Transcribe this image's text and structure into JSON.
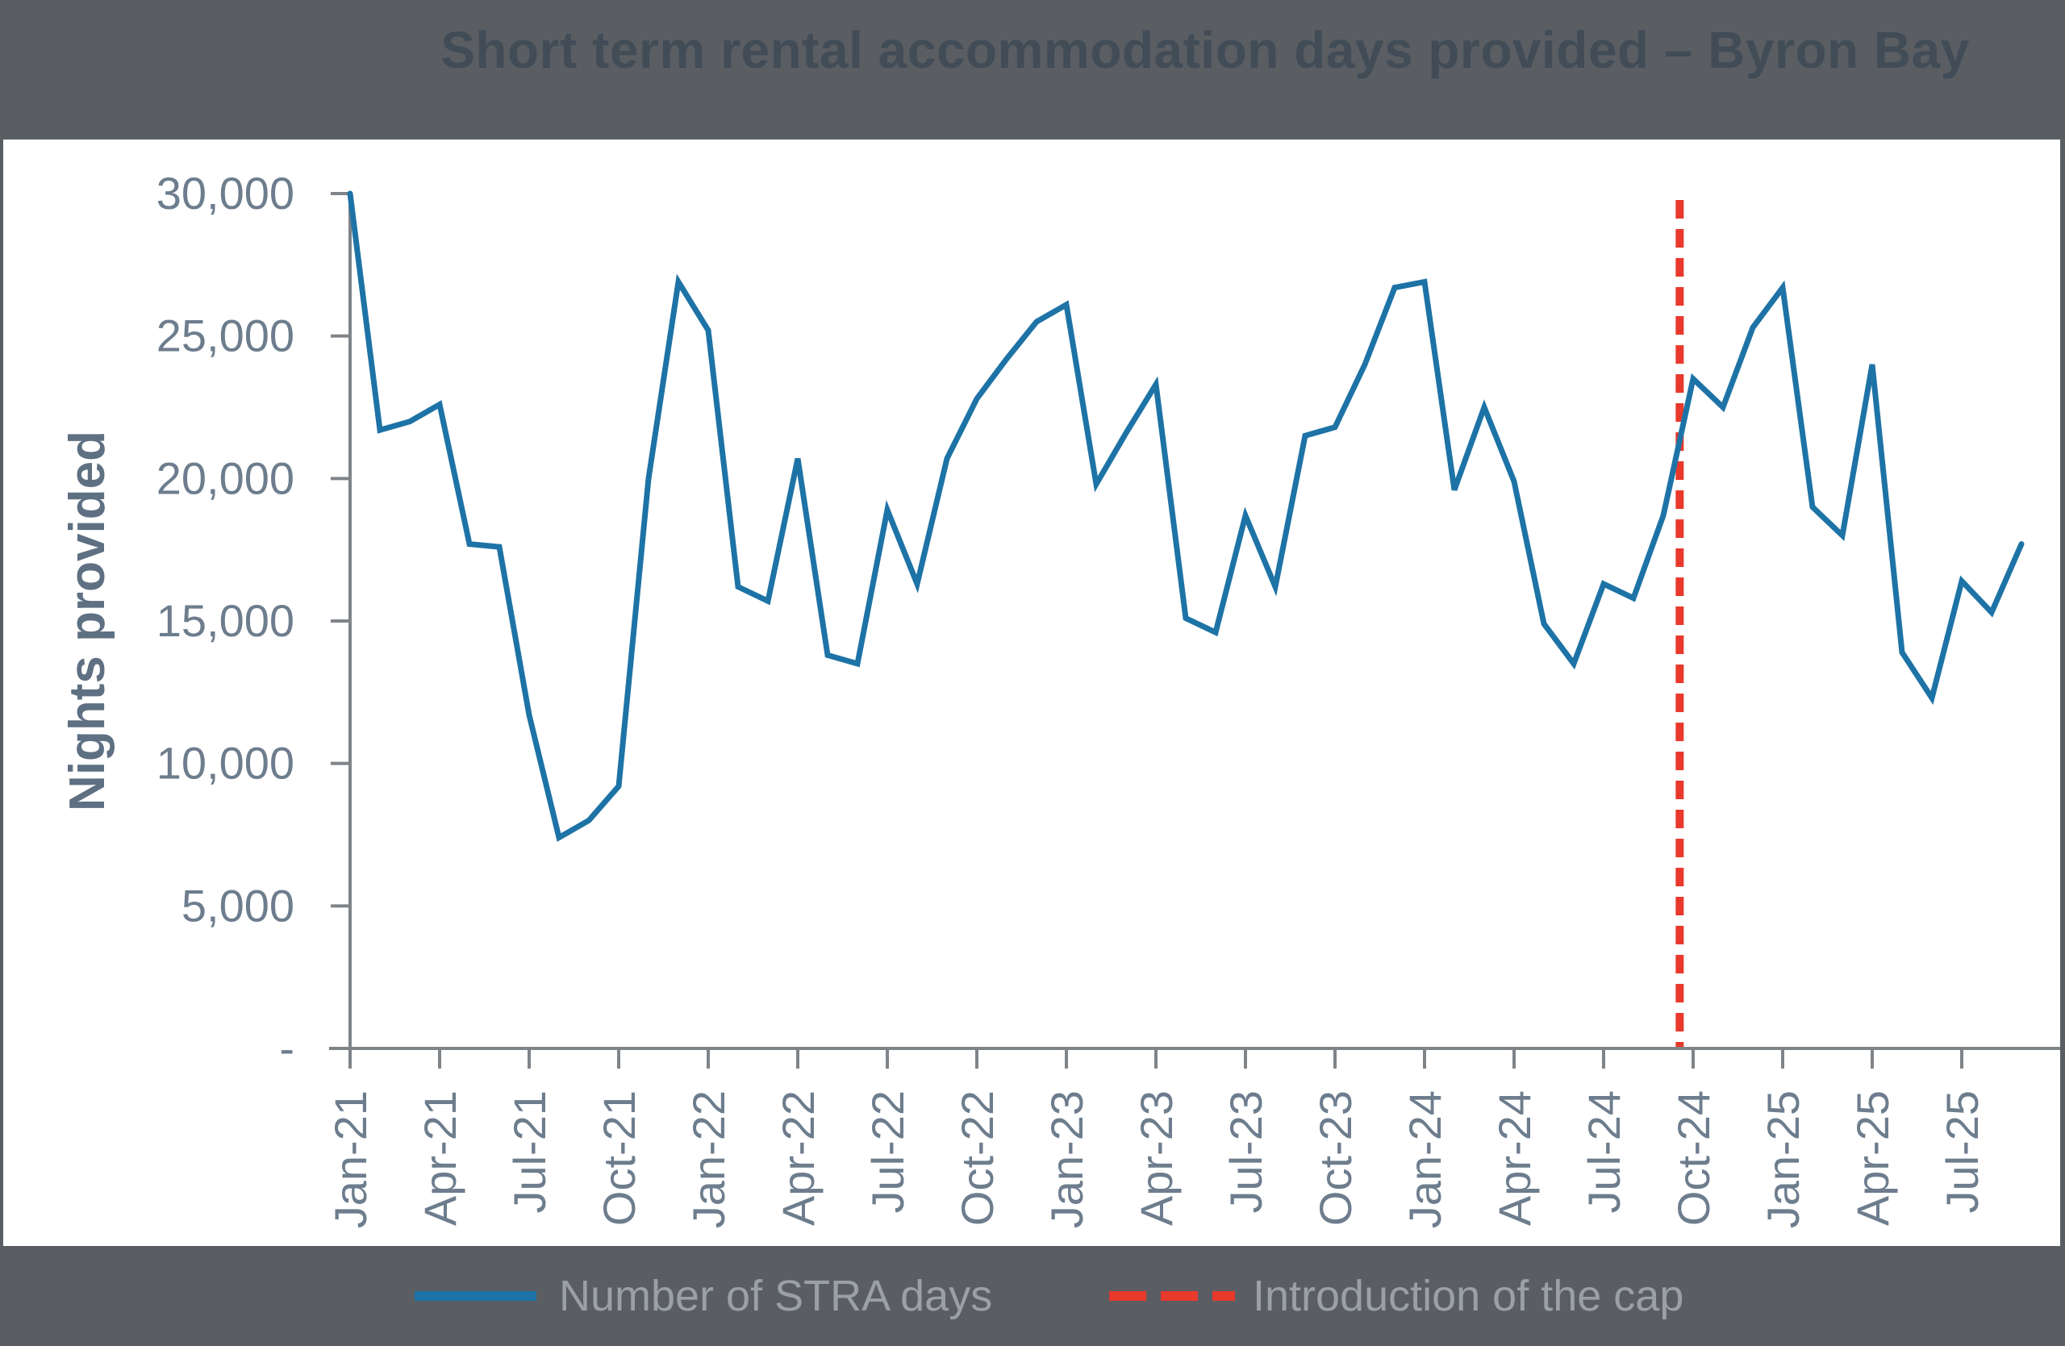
{
  "title": "Short term rental accommodation days provided – Byron Bay",
  "legend": {
    "series_label": "Number of STRA days",
    "cap_label": "Introduction of the cap"
  },
  "colors": {
    "background": "#5a5e63",
    "panel": "#ffffff",
    "line": "#1e73a6",
    "cap_line": "#e8392c",
    "title_text": "#414c57",
    "axis": "#7f8489",
    "tick_text": "#6d7d8d",
    "ylabel_text": "#5e7082",
    "legend_text": "#9aa0a6"
  },
  "chart_data": {
    "type": "line",
    "title": "Short term rental accommodation days provided – Byron Bay",
    "xlabel": "",
    "ylabel": "Nights provided",
    "ylim": [
      0,
      30000
    ],
    "ytick_interval": 5000,
    "ytick_labels": [
      "-",
      "5,000",
      "10,000",
      "15,000",
      "20,000",
      "25,000",
      "30,000"
    ],
    "xtick_interval_months": 3,
    "grid": false,
    "legend_position": "bottom",
    "x": [
      "Jan-21",
      "Feb-21",
      "Mar-21",
      "Apr-21",
      "May-21",
      "Jun-21",
      "Jul-21",
      "Aug-21",
      "Sep-21",
      "Oct-21",
      "Nov-21",
      "Dec-21",
      "Jan-22",
      "Feb-22",
      "Mar-22",
      "Apr-22",
      "May-22",
      "Jun-22",
      "Jul-22",
      "Aug-22",
      "Sep-22",
      "Oct-22",
      "Nov-22",
      "Dec-22",
      "Jan-23",
      "Feb-23",
      "Mar-23",
      "Apr-23",
      "May-23",
      "Jun-23",
      "Jul-23",
      "Aug-23",
      "Sep-23",
      "Oct-23",
      "Nov-23",
      "Dec-23",
      "Jan-24",
      "Feb-24",
      "Mar-24",
      "Apr-24",
      "May-24",
      "Jun-24",
      "Jul-24",
      "Aug-24",
      "Sep-24",
      "Oct-24",
      "Nov-24",
      "Dec-24",
      "Jan-25",
      "Feb-25",
      "Mar-25",
      "Apr-25",
      "May-25",
      "Jun-25",
      "Jul-25",
      "Aug-25",
      "Sep-25"
    ],
    "series": [
      {
        "name": "Number of STRA days",
        "values": [
          30000,
          21700,
          22000,
          22600,
          17700,
          17600,
          11700,
          7400,
          8000,
          9200,
          20000,
          26900,
          25200,
          16200,
          15700,
          20700,
          13800,
          13500,
          18900,
          16300,
          20700,
          22800,
          24200,
          25500,
          26100,
          19800,
          21600,
          23300,
          15100,
          14600,
          18700,
          16200,
          21500,
          21800,
          24000,
          26700,
          26900,
          19600,
          22500,
          19900,
          14900,
          13500,
          16300,
          15800,
          18700,
          23500,
          22500,
          25300,
          26700,
          19000,
          18000,
          24000,
          13900,
          12300,
          16400,
          15300,
          17700
        ]
      }
    ],
    "annotations": [
      {
        "type": "vline",
        "label": "Introduction of the cap",
        "style": "dashed",
        "between": [
          "Sep-24",
          "Oct-24"
        ],
        "x_index": 44.55
      }
    ]
  }
}
